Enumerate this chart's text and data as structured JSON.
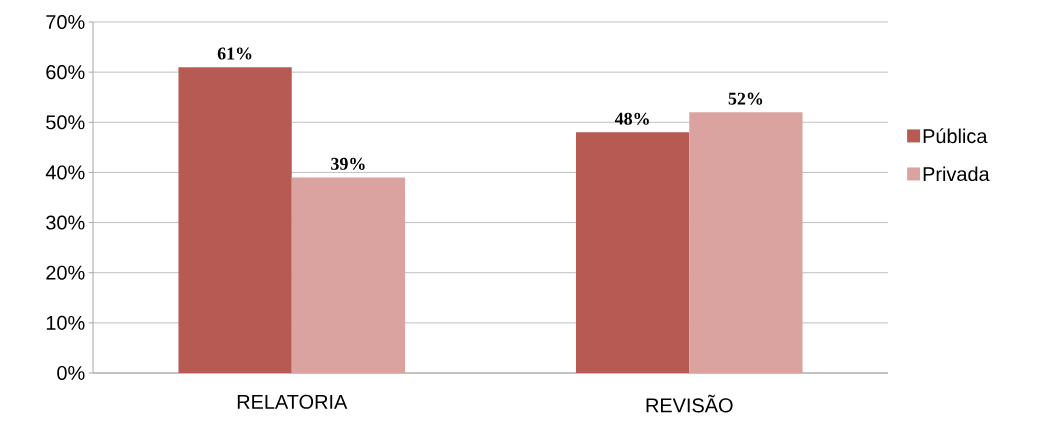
{
  "chart_data": {
    "type": "bar",
    "categories": [
      "RELATORIA",
      "REVISÃO"
    ],
    "series": [
      {
        "name": "Pública",
        "color": "#b85a54",
        "values": [
          61,
          48
        ],
        "value_labels": [
          "61%",
          "48%"
        ]
      },
      {
        "name": "Privada",
        "color": "#dba3a0",
        "values": [
          39,
          52
        ],
        "value_labels": [
          "39%",
          "52%"
        ]
      }
    ],
    "ylim": [
      0,
      70
    ],
    "yticks": [
      {
        "value": 0,
        "label": "0%"
      },
      {
        "value": 10,
        "label": "10%"
      },
      {
        "value": 20,
        "label": "20%"
      },
      {
        "value": 30,
        "label": "30%"
      },
      {
        "value": 40,
        "label": "40%"
      },
      {
        "value": 50,
        "label": "50%"
      },
      {
        "value": 60,
        "label": "60%"
      },
      {
        "value": 70,
        "label": "70%"
      }
    ],
    "grid": "y",
    "legend": "right"
  }
}
